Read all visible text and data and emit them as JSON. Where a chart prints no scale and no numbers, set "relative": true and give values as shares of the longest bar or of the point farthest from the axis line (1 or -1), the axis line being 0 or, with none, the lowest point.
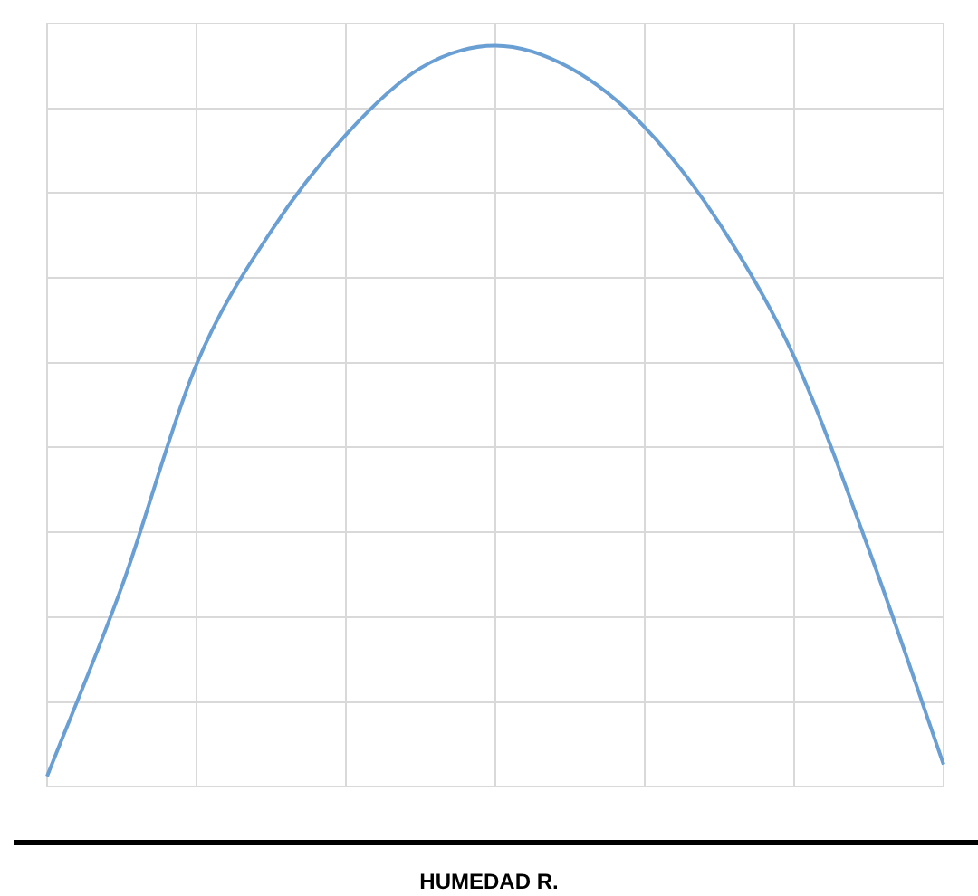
{
  "chart_data": {
    "type": "line",
    "xlabel": "HUMEDAD R.",
    "relative": true,
    "grid": true,
    "marker": "none",
    "categories": [
      null,
      null,
      null,
      null,
      null,
      null,
      null,
      null,
      null,
      null,
      null,
      null,
      null
    ],
    "series": [
      {
        "color": "#6a9fd4",
        "values": [
          0.014,
          0.27,
          0.57,
          0.75,
          0.88,
          0.97,
          1,
          0.97,
          0.89,
          0.76,
          0.58,
          0.32,
          0.03
        ]
      }
    ]
  }
}
